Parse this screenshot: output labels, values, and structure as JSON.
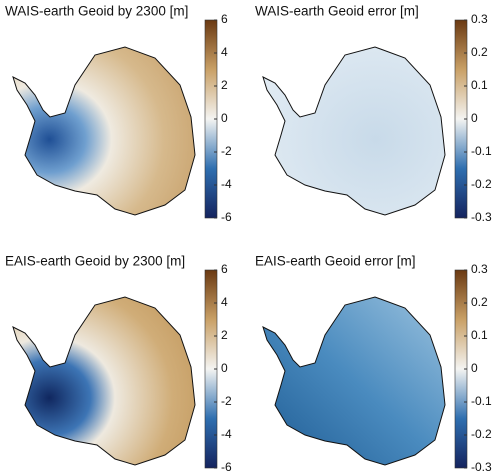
{
  "panels": [
    {
      "title": "WAIS-earth Geoid by 2300 [m]",
      "colorbar": {
        "lim": [
          -6,
          6
        ],
        "ticks": [
          -6,
          -4,
          -2,
          0,
          2,
          4,
          6
        ]
      }
    },
    {
      "title": "WAIS-earth Geoid error [m]",
      "colorbar": {
        "lim": [
          -0.3,
          0.3
        ],
        "ticks": [
          -0.3,
          -0.2,
          -0.1,
          0,
          0.1,
          0.2,
          0.3
        ]
      }
    },
    {
      "title": "EAIS-earth Geoid by 2300 [m]",
      "colorbar": {
        "lim": [
          -6,
          6
        ],
        "ticks": [
          -6,
          -4,
          -2,
          0,
          2,
          4,
          6
        ]
      }
    },
    {
      "title": "EAIS-earth Geoid error [m]",
      "colorbar": {
        "lim": [
          -0.3,
          0.3
        ],
        "ticks": [
          -0.3,
          -0.2,
          -0.1,
          0,
          0.1,
          0.2,
          0.3
        ]
      }
    }
  ]
}
